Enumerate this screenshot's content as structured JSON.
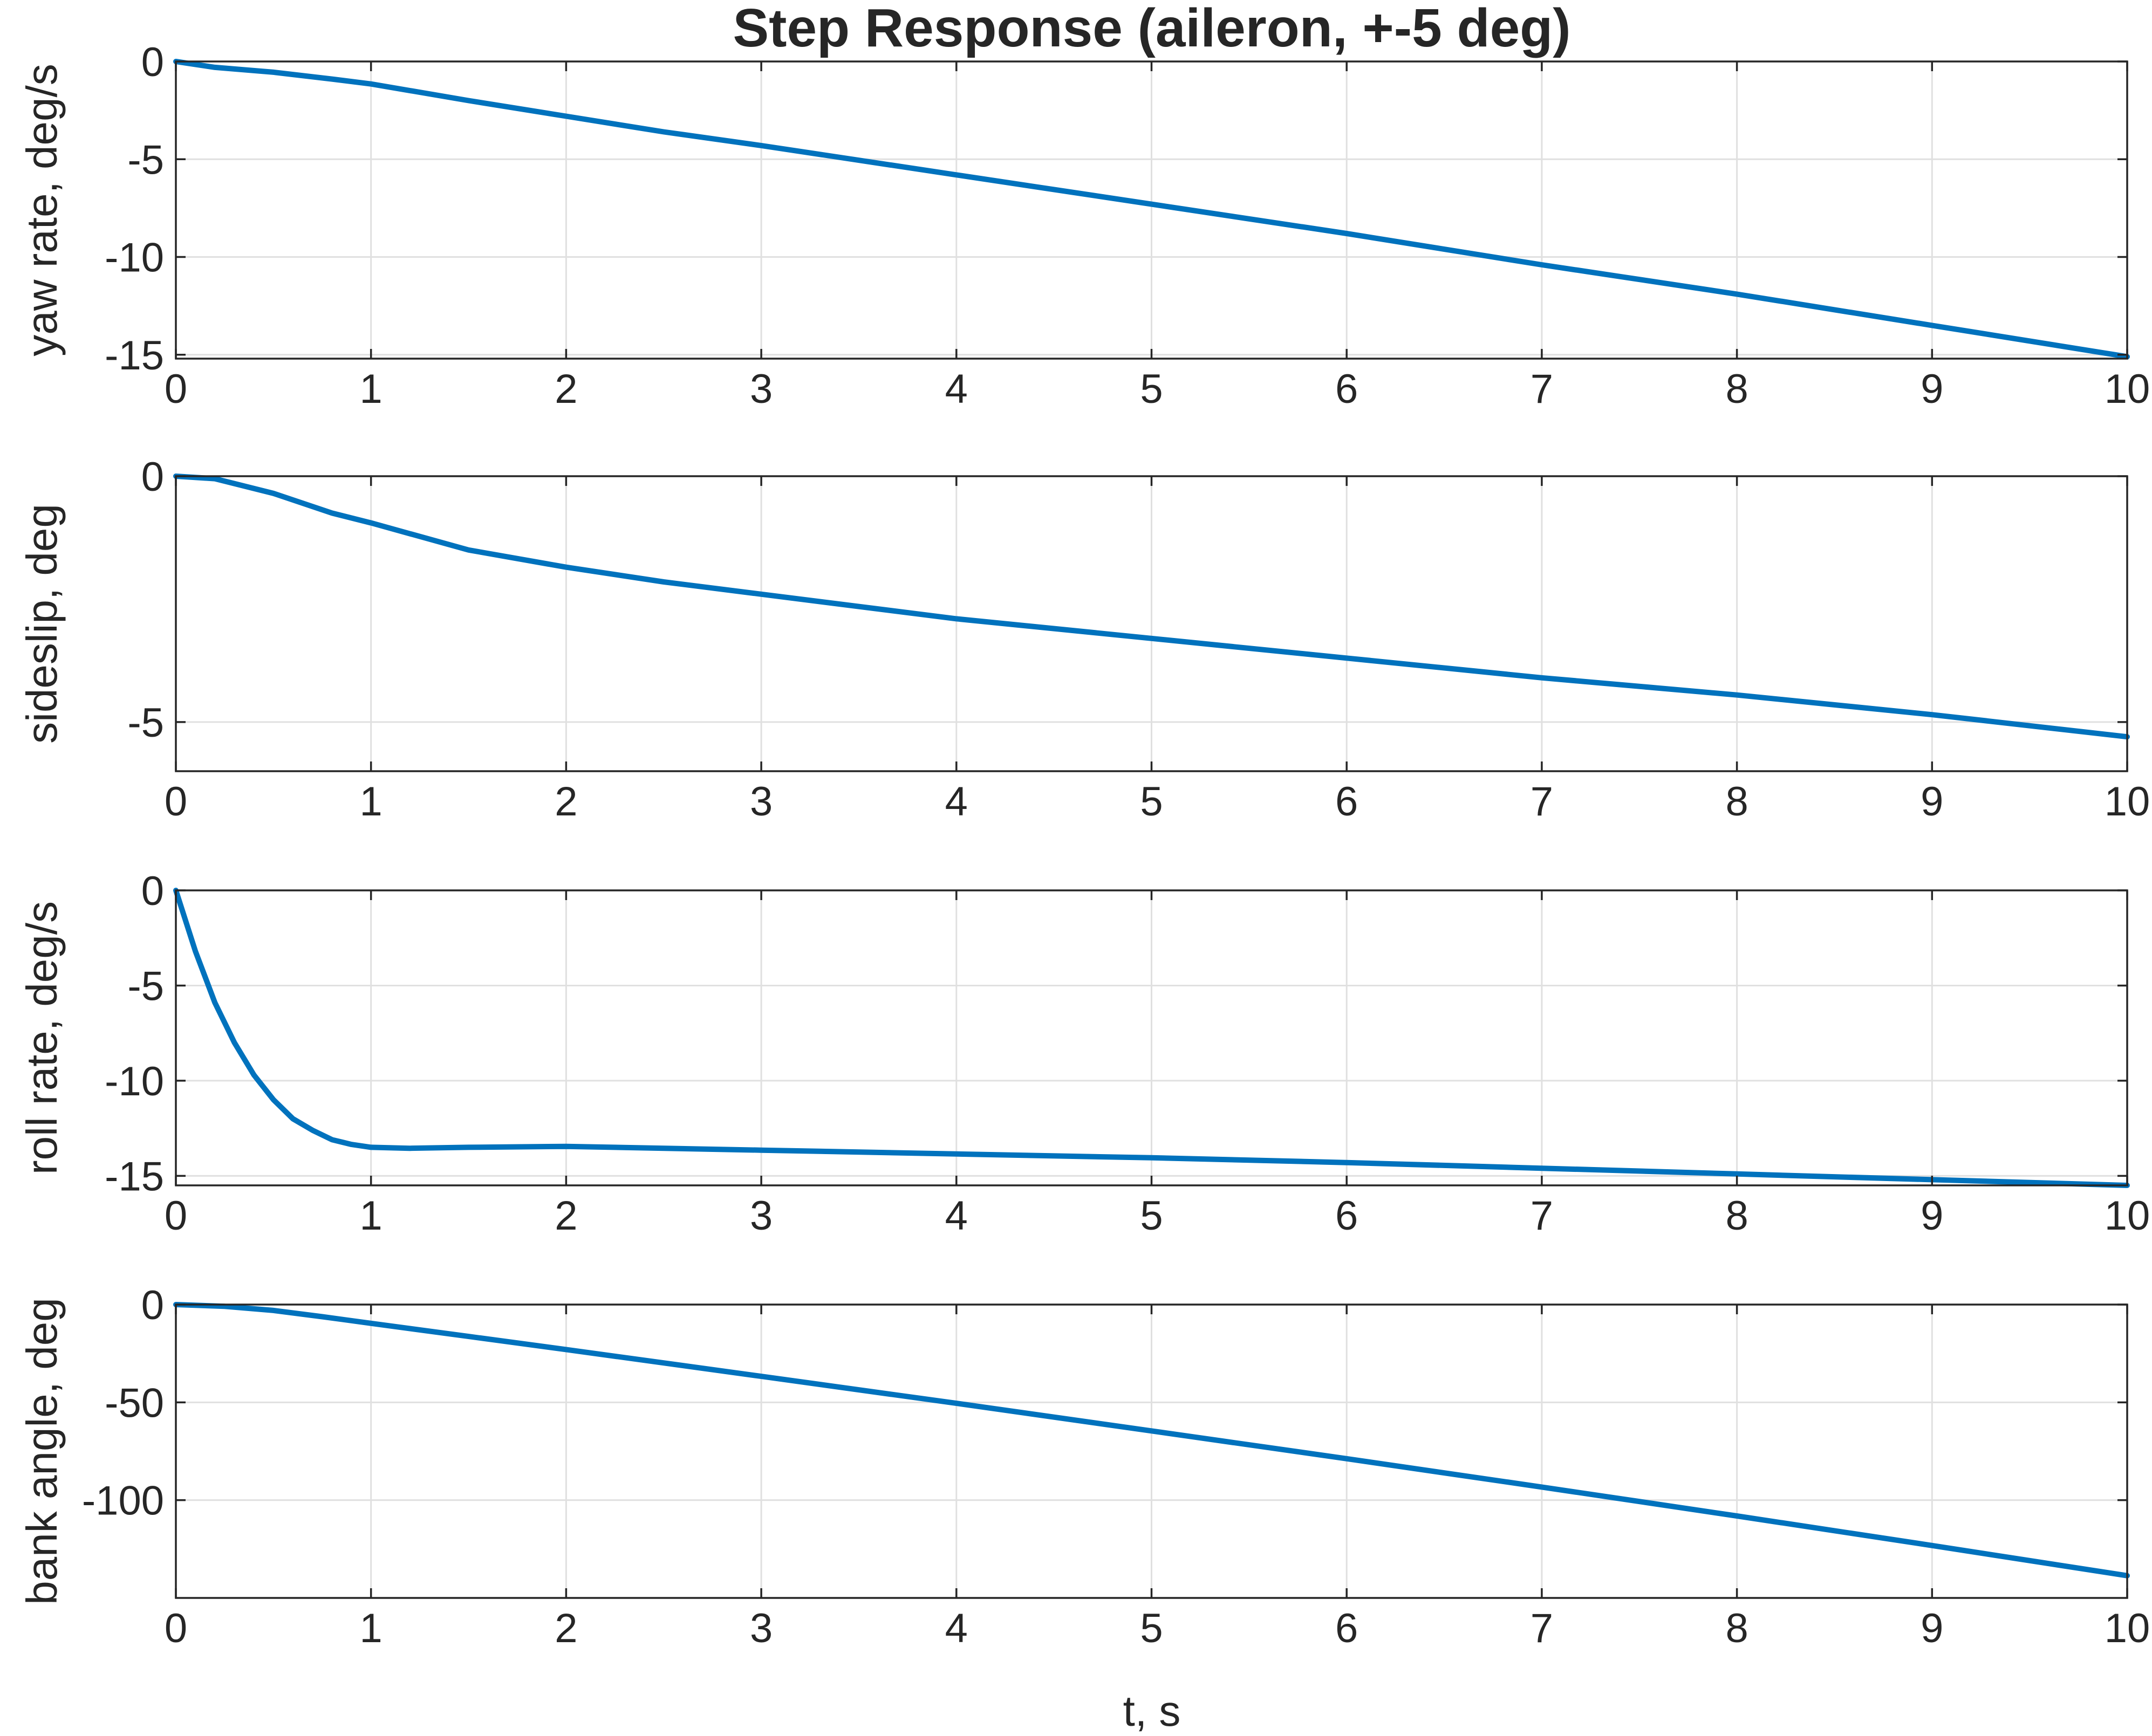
{
  "chart_data": {
    "title": "Step Response (aileron, +-5 deg)",
    "xlabel": "t, s",
    "line_color": "#0072BD",
    "grid": true,
    "subplots": [
      {
        "type": "line",
        "ylabel": "yaw rate, deg/s",
        "xlim": [
          0,
          10
        ],
        "ylim": [
          -15.2,
          0
        ],
        "xticks": [
          0,
          1,
          2,
          3,
          4,
          5,
          6,
          7,
          8,
          9,
          10
        ],
        "yticks": [
          0,
          -5,
          -10,
          -15
        ],
        "series": [
          {
            "x": [
              0,
              0.2,
              0.5,
              0.8,
              1,
              1.5,
              2,
              2.5,
              3,
              4,
              5,
              6,
              7,
              8,
              9,
              10
            ],
            "y": [
              0,
              -0.3,
              -0.55,
              -0.9,
              -1.15,
              -2.0,
              -2.8,
              -3.6,
              -4.3,
              -5.8,
              -7.3,
              -8.8,
              -10.4,
              -11.9,
              -13.5,
              -15.1
            ]
          }
        ]
      },
      {
        "type": "line",
        "ylabel": "sideslip, deg",
        "xlim": [
          0,
          10
        ],
        "ylim": [
          -6,
          0
        ],
        "xticks": [
          0,
          1,
          2,
          3,
          4,
          5,
          6,
          7,
          8,
          9,
          10
        ],
        "yticks": [
          0,
          -5
        ],
        "series": [
          {
            "x": [
              0,
              0.2,
              0.5,
              0.8,
              1,
              1.5,
              2,
              2.5,
              3,
              4,
              5,
              6,
              7,
              8,
              9,
              10
            ],
            "y": [
              0,
              -0.05,
              -0.35,
              -0.75,
              -0.95,
              -1.5,
              -1.85,
              -2.15,
              -2.4,
              -2.9,
              -3.3,
              -3.7,
              -4.1,
              -4.45,
              -4.85,
              -5.3
            ]
          }
        ]
      },
      {
        "type": "line",
        "ylabel": "roll rate, deg/s",
        "xlim": [
          0,
          10
        ],
        "ylim": [
          -15.5,
          0
        ],
        "xticks": [
          0,
          1,
          2,
          3,
          4,
          5,
          6,
          7,
          8,
          9,
          10
        ],
        "yticks": [
          0,
          -5,
          -10,
          -15
        ],
        "series": [
          {
            "x": [
              0,
              0.1,
              0.2,
              0.3,
              0.4,
              0.5,
              0.6,
              0.7,
              0.8,
              0.9,
              1,
              1.2,
              1.5,
              2,
              3,
              4,
              5,
              6,
              7,
              8,
              9,
              10
            ],
            "y": [
              0,
              -3.2,
              -5.9,
              -8.0,
              -9.7,
              -11.0,
              -12.0,
              -12.6,
              -13.1,
              -13.35,
              -13.5,
              -13.55,
              -13.5,
              -13.45,
              -13.65,
              -13.85,
              -14.05,
              -14.3,
              -14.6,
              -14.9,
              -15.2,
              -15.5
            ]
          }
        ]
      },
      {
        "type": "line",
        "ylabel": "bank angle, deg",
        "xlim": [
          0,
          10
        ],
        "ylim": [
          -150,
          0
        ],
        "xticks": [
          0,
          1,
          2,
          3,
          4,
          5,
          6,
          7,
          8,
          9,
          10
        ],
        "yticks": [
          0,
          -50,
          -100
        ],
        "series": [
          {
            "x": [
              0,
              0.25,
              0.5,
              0.75,
              1,
              1.5,
              2,
              3,
              4,
              5,
              6,
              7,
              8,
              9,
              10
            ],
            "y": [
              0,
              -0.9,
              -3.0,
              -6.2,
              -9.6,
              -16.3,
              -23.0,
              -36.7,
              -50.5,
              -64.6,
              -78.8,
              -93.3,
              -108.1,
              -123.2,
              -138.6
            ]
          }
        ]
      }
    ]
  }
}
